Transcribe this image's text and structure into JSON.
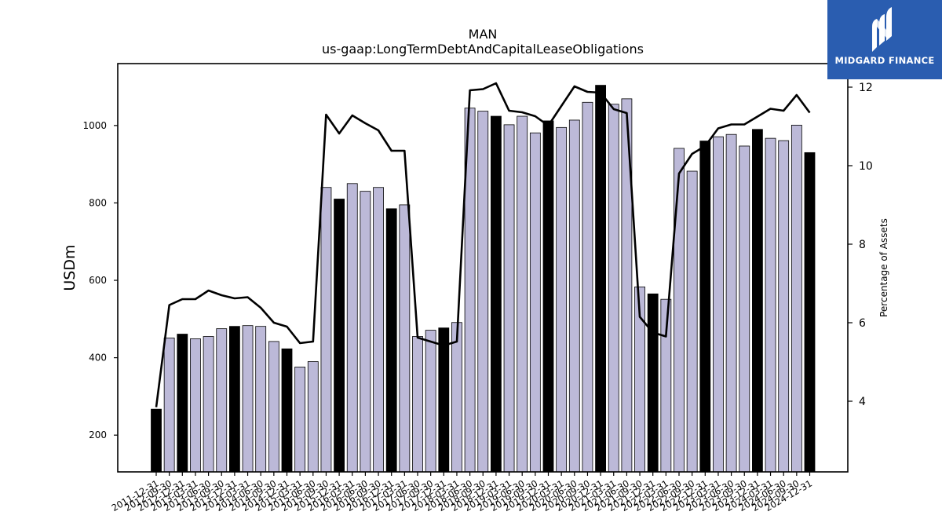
{
  "logo": {
    "text": "MIDGARD FINANCE",
    "icon": "midgard-logo-icon",
    "background": "#2a5db0"
  },
  "chart_data": {
    "type": "bar",
    "title": "MAN",
    "subtitle": "us-gaap:LongTermDebtAndCapitalLeaseObligations",
    "ylabel": "USDm",
    "y2label": "Percentage of Assets",
    "ylim": [
      105,
      1160
    ],
    "y2lim": [
      2.2,
      12.6
    ],
    "yticks": [
      200,
      400,
      600,
      800,
      1000
    ],
    "y2ticks": [
      4,
      6,
      8,
      10,
      12
    ],
    "grid": false,
    "colors": {
      "annual_bar": "#000000",
      "quarter_bar": "#bcb9d8",
      "bar_edge": "#000000",
      "line": "#000000"
    },
    "categories": [
      "2011-12-31",
      "2012-09-30",
      "2012-12-31",
      "2013-03-31",
      "2013-06-30",
      "2013-09-30",
      "2013-12-31",
      "2014-03-31",
      "2014-06-30",
      "2014-09-30",
      "2014-12-31",
      "2015-03-31",
      "2015-06-30",
      "2015-09-30",
      "2015-12-31",
      "2016-03-31",
      "2016-06-30",
      "2016-09-30",
      "2016-12-31",
      "2017-03-31",
      "2017-06-30",
      "2017-09-30",
      "2017-12-31",
      "2018-03-31",
      "2018-06-30",
      "2018-09-30",
      "2018-12-31",
      "2019-03-31",
      "2019-06-30",
      "2019-09-30",
      "2019-12-31",
      "2020-03-31",
      "2020-06-30",
      "2020-09-30",
      "2020-12-31",
      "2021-03-31",
      "2021-06-30",
      "2021-09-30",
      "2021-12-31",
      "2022-03-31",
      "2022-06-30",
      "2022-09-30",
      "2022-12-31",
      "2023-03-31",
      "2023-06-30",
      "2023-09-30",
      "2023-12-31",
      "2024-03-31",
      "2024-06-30",
      "2024-09-30",
      "2024-12-31"
    ],
    "series": [
      {
        "type": "bar",
        "values": [
          267,
          451,
          461,
          449,
          455,
          475,
          481,
          483,
          481,
          442,
          423,
          376,
          390,
          840,
          810,
          850,
          830,
          840,
          785,
          795,
          455,
          471,
          477,
          491,
          1045,
          1037,
          1024,
          1002,
          1024,
          981,
          1012,
          995,
          1014,
          1060,
          1104,
          1055,
          1069,
          583,
          565,
          551,
          941,
          882,
          960,
          971,
          977,
          947,
          990,
          967,
          961,
          1001,
          930
        ],
        "annual": [
          true,
          false,
          true,
          false,
          false,
          false,
          true,
          false,
          false,
          false,
          true,
          false,
          false,
          false,
          true,
          false,
          false,
          false,
          true,
          false,
          false,
          false,
          true,
          false,
          false,
          false,
          true,
          false,
          false,
          false,
          true,
          false,
          false,
          false,
          true,
          false,
          false,
          false,
          true,
          false,
          false,
          false,
          true,
          false,
          false,
          false,
          true,
          false,
          false,
          false,
          true
        ]
      },
      {
        "type": "line",
        "axis": "right",
        "values": [
          3.85,
          6.45,
          6.6,
          6.6,
          6.82,
          6.7,
          6.62,
          6.65,
          6.38,
          6.0,
          5.9,
          5.48,
          5.52,
          11.3,
          10.82,
          11.28,
          11.08,
          10.9,
          10.38,
          10.38,
          5.62,
          5.52,
          5.42,
          5.52,
          11.92,
          11.95,
          12.1,
          11.4,
          11.36,
          11.26,
          11.02,
          11.52,
          12.02,
          11.88,
          11.86,
          11.44,
          11.34,
          6.15,
          5.75,
          5.65,
          9.8,
          10.3,
          10.5,
          10.95,
          11.05,
          11.05,
          11.25,
          11.45,
          11.4,
          11.8,
          11.35
        ]
      }
    ]
  }
}
